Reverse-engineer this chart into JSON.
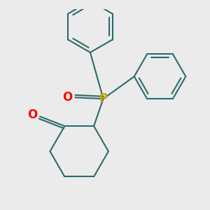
{
  "background_color": "#ebebeb",
  "bond_color": "#2d6b6b",
  "bond_width": 1.5,
  "P_color": "#c8a000",
  "O_color": "#ff0000",
  "figsize": [
    3.0,
    3.0
  ],
  "dpi": 100,
  "xlim": [
    -2.8,
    3.2
  ],
  "ylim": [
    -2.8,
    2.8
  ]
}
